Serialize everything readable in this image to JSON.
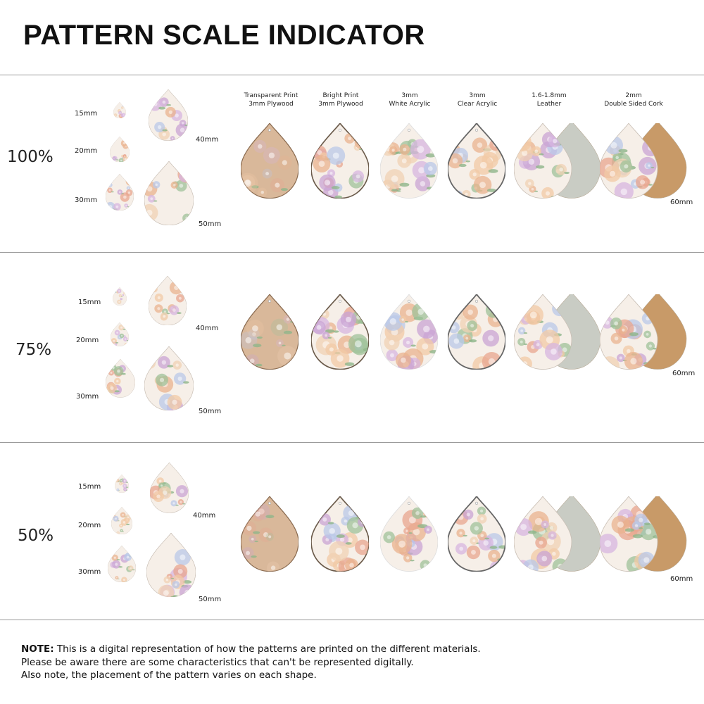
{
  "title": "PATTERN SCALE INDICATOR",
  "materials": [
    {
      "line1": "Transparent Print",
      "line2": "3mm Plywood"
    },
    {
      "line1": "Bright Print",
      "line2": "3mm Plywood"
    },
    {
      "line1": "3mm",
      "line2": "White Acrylic"
    },
    {
      "line1": "3mm",
      "line2": "Clear Acrylic"
    },
    {
      "line1": "1.6-1.8mm",
      "line2": "Leather"
    },
    {
      "line1": "2mm",
      "line2": "Double Sided Cork"
    }
  ],
  "sizes": [
    "15mm",
    "20mm",
    "30mm",
    "40mm",
    "50mm",
    "60mm"
  ],
  "sections": [
    {
      "percent": "100%"
    },
    {
      "percent": "75%"
    },
    {
      "percent": "50%"
    }
  ],
  "note": {
    "label": "NOTE:",
    "line1": " This is a digital representation of how the patterns are printed on the different materials.",
    "line2": "Please be aware there are some characteristics that can't be represented digitally.",
    "line3": "Also note, the placement of the pattern varies on each shape."
  },
  "colors": {
    "plywood": "#d9b89a",
    "floral_base": "#f6efe8",
    "leather_back": "#c9ccc4",
    "cork_back": "#c89a68",
    "rule": "#9a9a9a"
  }
}
